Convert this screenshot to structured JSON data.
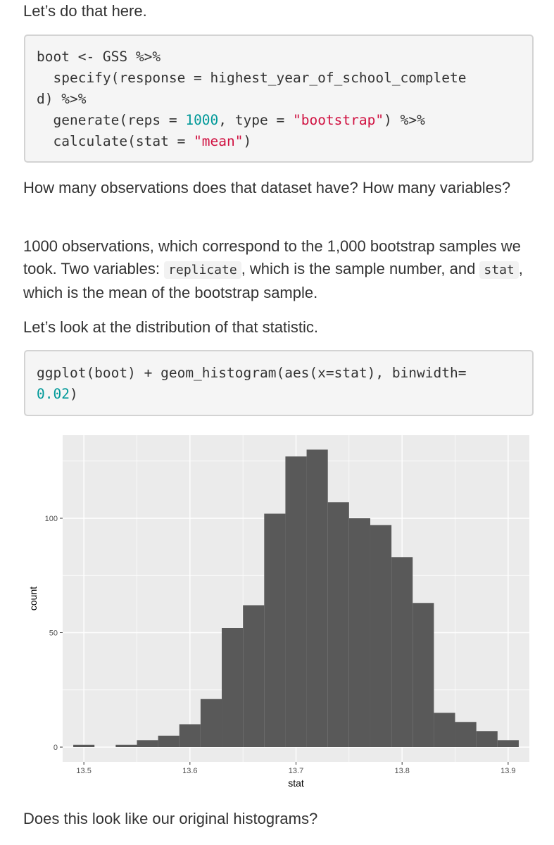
{
  "paragraphs": {
    "p1": "Let’s do that here.",
    "p2": "How many observations does that dataset have? How many variables?",
    "p3_before": "1000 observations, which correspond to the 1,000 bootstrap samples we took. Two variables: ",
    "p3_code1": "replicate",
    "p3_middle": ", which is the sample number, and ",
    "p3_code2": "stat",
    "p3_after": ", which is the mean of the bootstrap sample.",
    "p4": "Let’s look at the distribution of that statistic.",
    "p5": "Does this look like our original histograms?"
  },
  "code1": {
    "line1": "boot <- GSS %>%",
    "line2": "  specify(response = highest_year_of_school_complete",
    "line3": "d) %>%",
    "line4_a": "  generate(reps = ",
    "line4_num": "1000",
    "line4_b": ", type = ",
    "line4_str": "\"bootstrap\"",
    "line4_c": ") %>%",
    "line5_a": "  calculate(stat = ",
    "line5_str": "\"mean\"",
    "line5_b": ")"
  },
  "code2": {
    "line1": "ggplot(boot) + geom_histogram(aes(x=stat), binwidth=",
    "line2_num": "0.02",
    "line2_b": ")"
  },
  "colors": {
    "panel_bg": "#ebebeb",
    "gridline": "#ffffff",
    "bar_fill": "#595959",
    "code_number": "#009999",
    "code_string": "#d01040"
  },
  "chart_data": {
    "type": "bar",
    "xlabel": "stat",
    "ylabel": "count",
    "binwidth": 0.02,
    "xlim": [
      13.48,
      13.92
    ],
    "ylim": [
      0,
      130
    ],
    "x_ticks": [
      13.5,
      13.6,
      13.7,
      13.8,
      13.9
    ],
    "x_tick_labels": [
      "13.5",
      "13.6",
      "13.7",
      "13.8",
      "13.9"
    ],
    "y_ticks": [
      0,
      50,
      100
    ],
    "y_tick_labels": [
      "0",
      "50",
      "100"
    ],
    "grid": true,
    "bins": [
      {
        "center": 13.5,
        "count": 1
      },
      {
        "center": 13.52,
        "count": 0
      },
      {
        "center": 13.54,
        "count": 1
      },
      {
        "center": 13.56,
        "count": 3
      },
      {
        "center": 13.58,
        "count": 5
      },
      {
        "center": 13.6,
        "count": 10
      },
      {
        "center": 13.62,
        "count": 21
      },
      {
        "center": 13.64,
        "count": 52
      },
      {
        "center": 13.66,
        "count": 62
      },
      {
        "center": 13.68,
        "count": 102
      },
      {
        "center": 13.7,
        "count": 127
      },
      {
        "center": 13.72,
        "count": 130
      },
      {
        "center": 13.74,
        "count": 107
      },
      {
        "center": 13.76,
        "count": 100
      },
      {
        "center": 13.78,
        "count": 97
      },
      {
        "center": 13.8,
        "count": 83
      },
      {
        "center": 13.82,
        "count": 63
      },
      {
        "center": 13.84,
        "count": 15
      },
      {
        "center": 13.86,
        "count": 11
      },
      {
        "center": 13.88,
        "count": 7
      },
      {
        "center": 13.9,
        "count": 3
      }
    ]
  }
}
